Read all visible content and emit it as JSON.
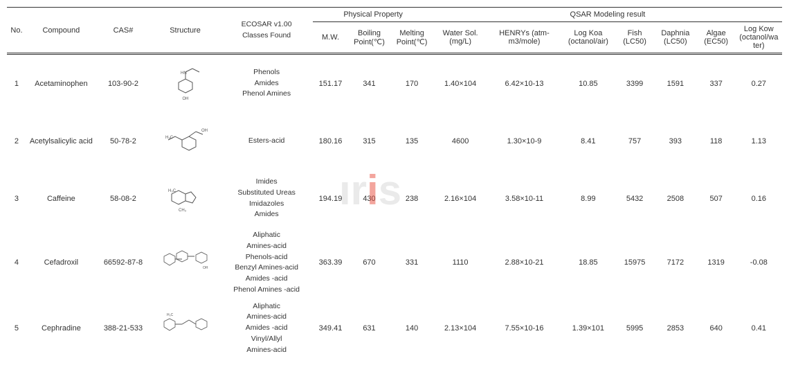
{
  "headers": {
    "no": "No.",
    "compound": "Compound",
    "cas": "CAS#",
    "structure": "Structure",
    "ecosar": "ECOSAR v1.00\nClasses Found",
    "phys_group": "Physical Property",
    "qsar_group": "QSAR Modeling result",
    "mw": "M.W.",
    "boiling": "Boiling Point(℃)",
    "melting": "Melting Point(℃)",
    "water_sol": "Water Sol. (mg/L)",
    "henrys": "HENRYs (atm-m3/mole)",
    "log_koa": "Log Koa (octanol/air)",
    "fish": "Fish (LC50)",
    "daphnia": "Daphnia (LC50)",
    "algae": "Algae (EC50)",
    "log_kow": "Log Kow (octanol/wa ter)"
  },
  "rows": [
    {
      "no": "1",
      "compound": "Acetaminophen",
      "cas": "103-90-2",
      "ecosar": "Phenols\nAmides\nPhenol Amines",
      "mw": "151.17",
      "boiling": "341",
      "melting": "170",
      "water_sol": "1.40×104",
      "henrys": "6.42×10-13",
      "log_koa": "10.85",
      "fish": "3399",
      "daphnia": "1591",
      "algae": "337",
      "log_kow": "0.27"
    },
    {
      "no": "2",
      "compound": "Acetylsalicylic acid",
      "cas": "50-78-2",
      "ecosar": "Esters-acid",
      "mw": "180.16",
      "boiling": "315",
      "melting": "135",
      "water_sol": "4600",
      "henrys": "1.30×10-9",
      "log_koa": "8.41",
      "fish": "757",
      "daphnia": "393",
      "algae": "118",
      "log_kow": "1.13"
    },
    {
      "no": "3",
      "compound": "Caffeine",
      "cas": "58-08-2",
      "ecosar": "Imides\nSubstituted Ureas\nImidazoles\nAmides",
      "mw": "194.19",
      "boiling": "430",
      "melting": "238",
      "water_sol": "2.16×104",
      "henrys": "3.58×10-11",
      "log_koa": "8.99",
      "fish": "5432",
      "daphnia": "2508",
      "algae": "507",
      "log_kow": "0.16"
    },
    {
      "no": "4",
      "compound": "Cefadroxil",
      "cas": "66592-87-8",
      "ecosar": "Aliphatic\nAmines-acid\nPhenols-acid\nBenzyl Amines-acid\nAmides -acid\nPhenol Amines -acid",
      "mw": "363.39",
      "boiling": "670",
      "melting": "331",
      "water_sol": "1110",
      "henrys": "2.88×10-21",
      "log_koa": "18.85",
      "fish": "15975",
      "daphnia": "7172",
      "algae": "1319",
      "log_kow": "-0.08"
    },
    {
      "no": "5",
      "compound": "Cephradine",
      "cas": "388-21-533",
      "ecosar": "Aliphatic\nAmines-acid\nAmides -acid\nVinyl/Allyl\nAmines-acid",
      "mw": "349.41",
      "boiling": "631",
      "melting": "140",
      "water_sol": "2.13×104",
      "henrys": "7.55×10-16",
      "log_koa": "1.39×101",
      "fish": "5995",
      "daphnia": "2853",
      "algae": "640",
      "log_kow": "0.41"
    }
  ],
  "watermark": {
    "text_pre": "ır",
    "dot": "i",
    "text_post": "s"
  }
}
